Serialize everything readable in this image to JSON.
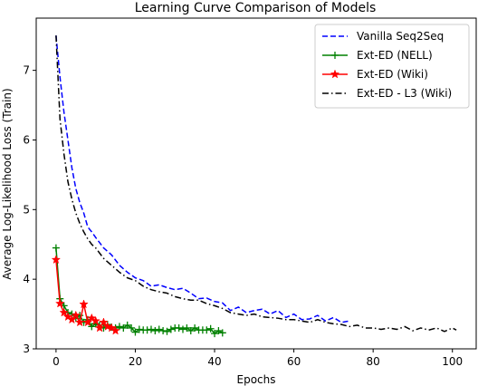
{
  "chart_data": {
    "type": "line",
    "title": "Learning Curve Comparison of Models",
    "xlabel": "Epochs",
    "ylabel": "Average Log-Likelihood Loss (Train)",
    "xlim": [
      -5,
      106
    ],
    "ylim": [
      3.0,
      7.75
    ],
    "xticks": [
      0,
      20,
      40,
      60,
      80,
      100
    ],
    "yticks": [
      3,
      4,
      5,
      6,
      7
    ],
    "grid": false,
    "legend": "top-right",
    "series": [
      {
        "name": "Vanilla Seq2Seq",
        "color": "#0000ff",
        "linestyle": "dashed",
        "marker": "none",
        "x": [
          0,
          1,
          2,
          3,
          4,
          5,
          6,
          7,
          8,
          9,
          10,
          12,
          14,
          16,
          18,
          20,
          22,
          24,
          26,
          28,
          30,
          32,
          34,
          36,
          38,
          40,
          42,
          44,
          46,
          48,
          50,
          52,
          54,
          56,
          58,
          60,
          62,
          64,
          66,
          68,
          70,
          72,
          74
        ],
        "y": [
          7.5,
          6.9,
          6.4,
          6.0,
          5.6,
          5.3,
          5.1,
          4.95,
          4.75,
          4.68,
          4.6,
          4.45,
          4.35,
          4.2,
          4.1,
          4.02,
          3.98,
          3.9,
          3.92,
          3.88,
          3.85,
          3.87,
          3.8,
          3.72,
          3.73,
          3.68,
          3.66,
          3.55,
          3.6,
          3.52,
          3.55,
          3.57,
          3.5,
          3.55,
          3.45,
          3.5,
          3.42,
          3.43,
          3.48,
          3.4,
          3.45,
          3.38,
          3.4
        ]
      },
      {
        "name": "Ext-ED (NELL)",
        "color": "#008000",
        "linestyle": "solid",
        "marker": "+",
        "x": [
          0,
          1,
          2,
          3,
          4,
          5,
          6,
          7,
          8,
          9,
          10,
          11,
          12,
          13,
          14,
          15,
          16,
          17,
          18,
          19,
          20,
          21,
          22,
          23,
          24,
          25,
          26,
          27,
          28,
          29,
          30,
          31,
          32,
          33,
          34,
          35,
          36,
          37,
          38,
          39,
          40,
          41,
          42
        ],
        "y": [
          4.45,
          3.72,
          3.62,
          3.52,
          3.5,
          3.44,
          3.48,
          3.38,
          3.42,
          3.32,
          3.36,
          3.34,
          3.3,
          3.35,
          3.31,
          3.3,
          3.32,
          3.3,
          3.34,
          3.3,
          3.24,
          3.28,
          3.27,
          3.27,
          3.28,
          3.26,
          3.28,
          3.26,
          3.25,
          3.28,
          3.3,
          3.3,
          3.28,
          3.3,
          3.26,
          3.3,
          3.27,
          3.27,
          3.27,
          3.29,
          3.22,
          3.26,
          3.23
        ]
      },
      {
        "name": "Ext-ED (Wiki)",
        "color": "#ff0000",
        "linestyle": "solid",
        "marker": "star",
        "x": [
          0,
          1,
          2,
          3,
          4,
          5,
          6,
          7,
          8,
          9,
          10,
          11,
          12,
          13,
          14,
          15
        ],
        "y": [
          4.28,
          3.65,
          3.52,
          3.46,
          3.42,
          3.48,
          3.38,
          3.64,
          3.38,
          3.44,
          3.4,
          3.3,
          3.38,
          3.32,
          3.3,
          3.26
        ]
      },
      {
        "name": "Ext-ED - L3 (Wiki)",
        "color": "#000000",
        "linestyle": "dashdot",
        "marker": "none",
        "x": [
          0,
          1,
          2,
          3,
          4,
          5,
          6,
          7,
          8,
          9,
          10,
          12,
          14,
          16,
          18,
          20,
          22,
          24,
          26,
          28,
          30,
          32,
          34,
          36,
          38,
          40,
          42,
          44,
          46,
          48,
          50,
          52,
          54,
          56,
          58,
          60,
          62,
          64,
          66,
          68,
          70,
          72,
          74,
          76,
          78,
          80,
          82,
          84,
          86,
          88,
          90,
          92,
          94,
          96,
          98,
          100,
          101
        ],
        "y": [
          7.5,
          6.3,
          5.8,
          5.4,
          5.15,
          4.95,
          4.8,
          4.68,
          4.58,
          4.5,
          4.45,
          4.3,
          4.2,
          4.1,
          4.02,
          3.98,
          3.9,
          3.85,
          3.82,
          3.8,
          3.75,
          3.72,
          3.7,
          3.7,
          3.65,
          3.62,
          3.58,
          3.52,
          3.5,
          3.48,
          3.5,
          3.46,
          3.45,
          3.44,
          3.42,
          3.42,
          3.4,
          3.38,
          3.42,
          3.38,
          3.36,
          3.35,
          3.32,
          3.34,
          3.3,
          3.3,
          3.28,
          3.3,
          3.28,
          3.32,
          3.26,
          3.3,
          3.27,
          3.3,
          3.25,
          3.3,
          3.27
        ]
      }
    ]
  }
}
